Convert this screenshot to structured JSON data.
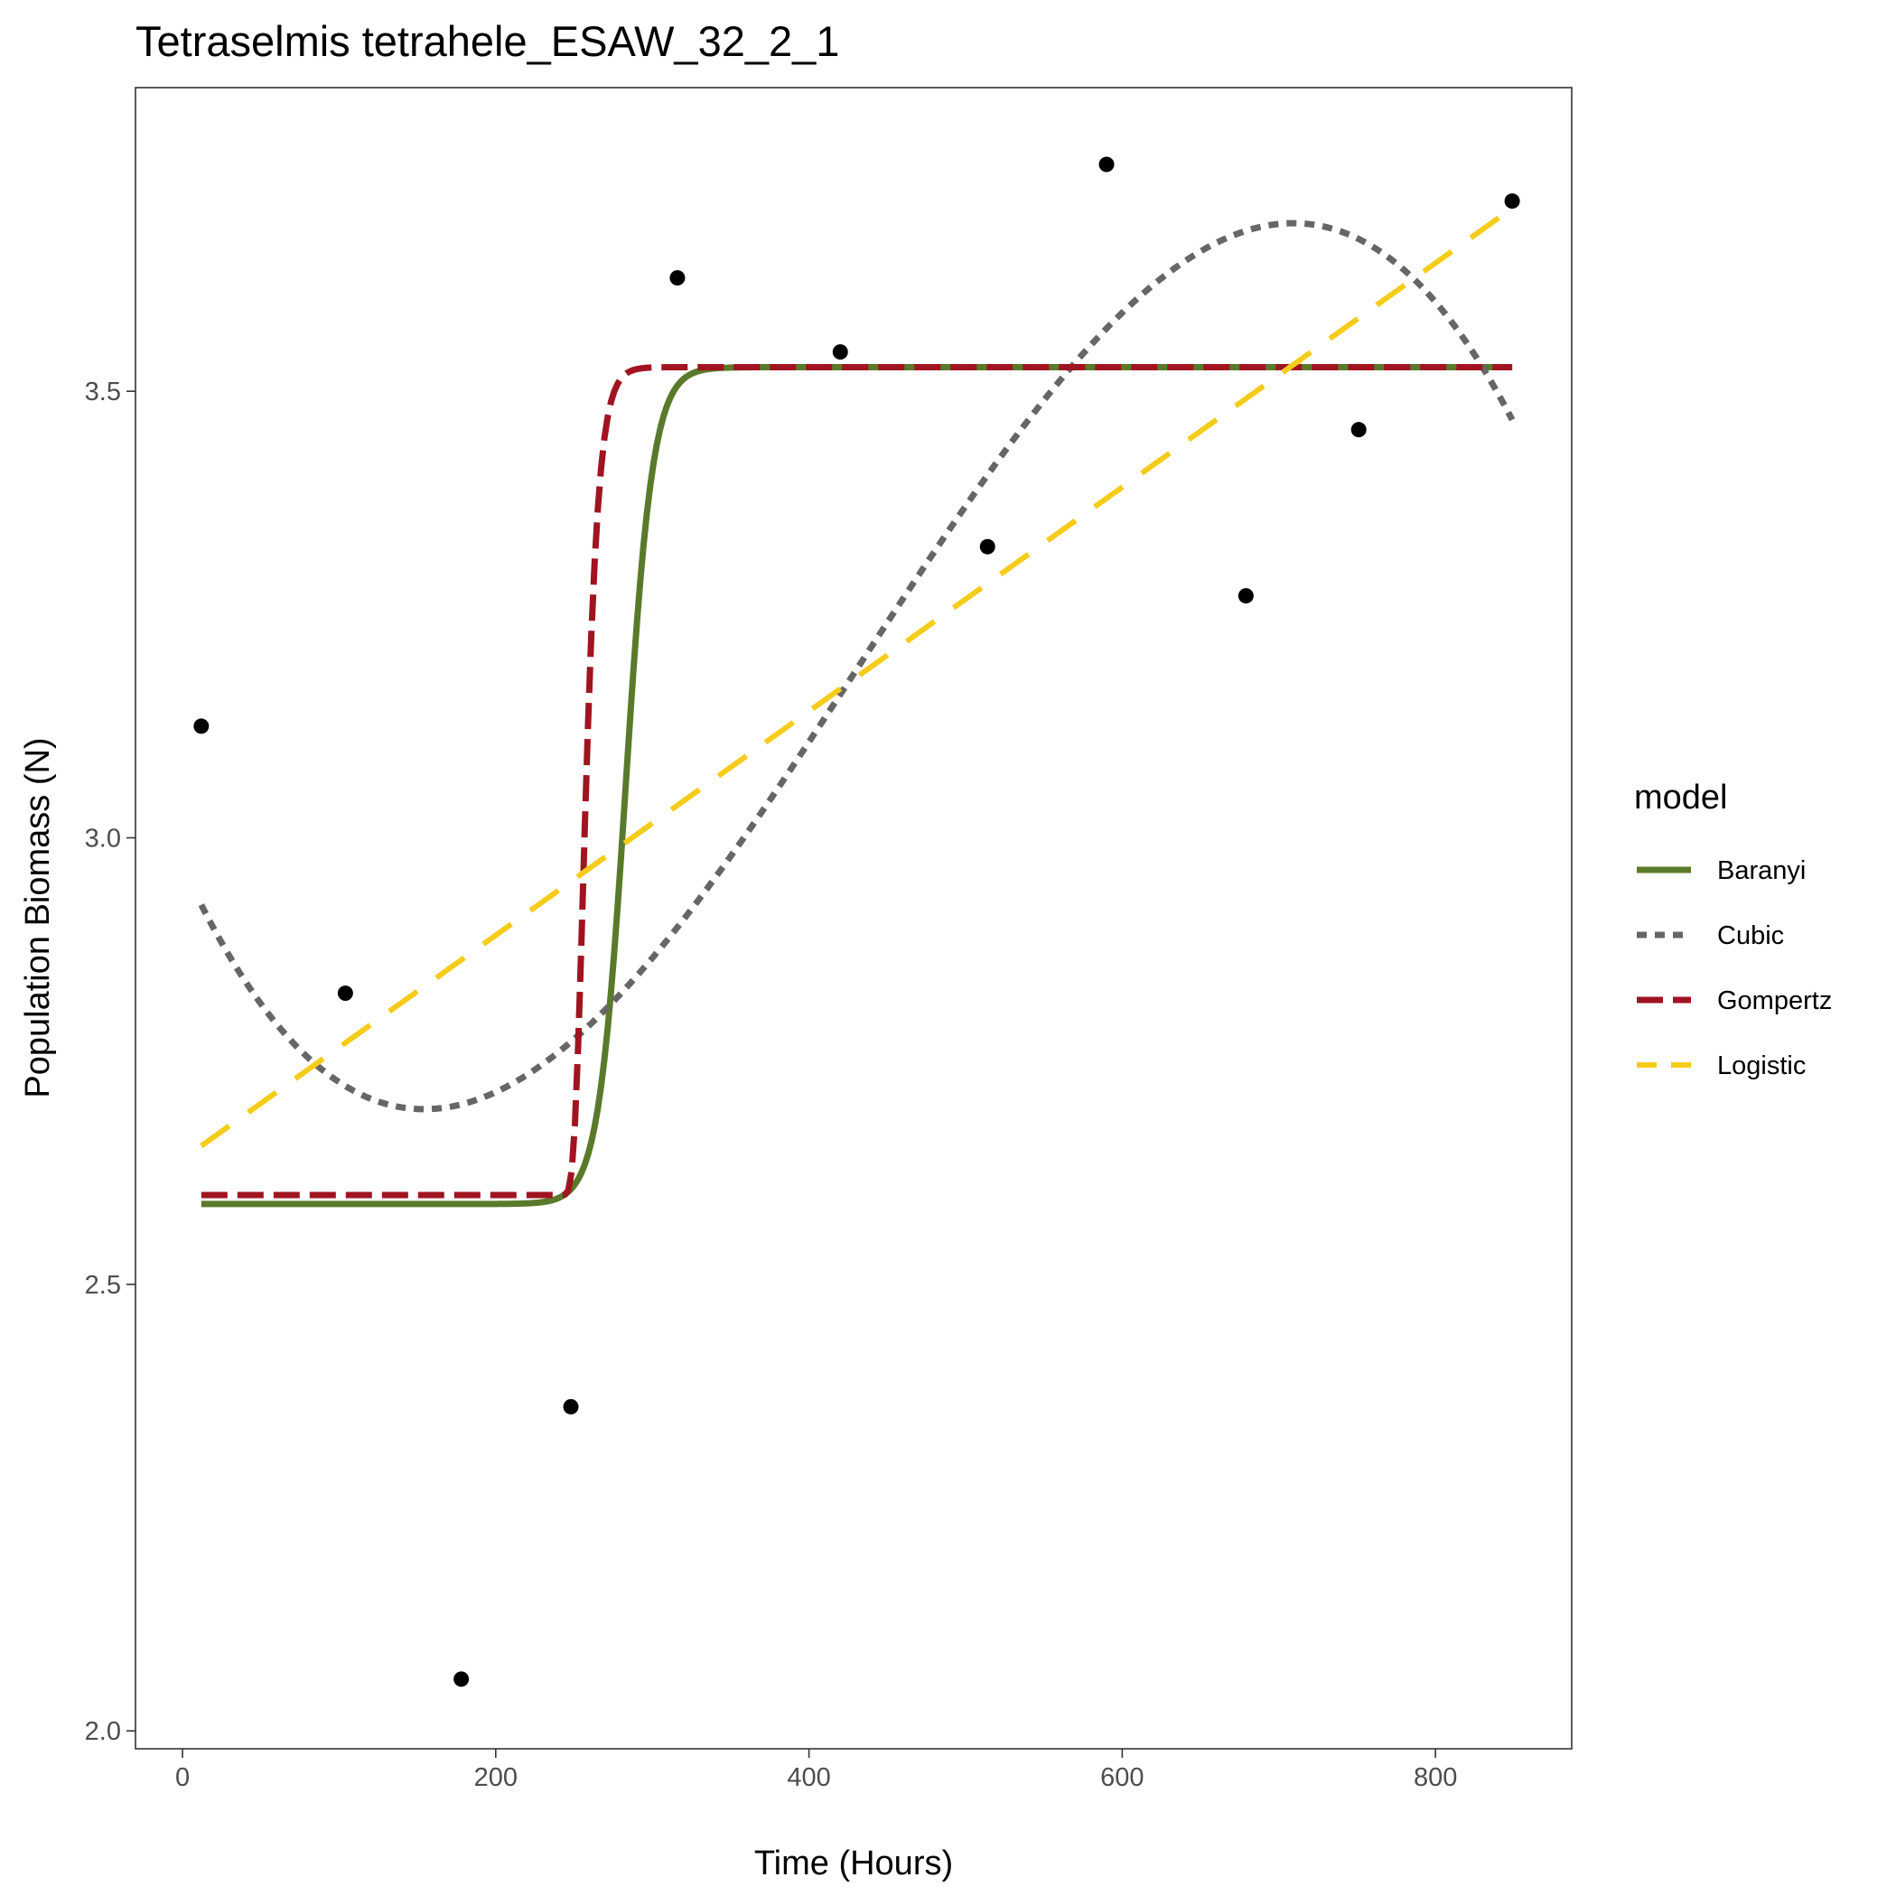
{
  "chart_data": {
    "type": "line",
    "title": "Tetraselmis tetrahele_ESAW_32_2_1",
    "xlabel": "Time (Hours)",
    "ylabel": "Population Biomass (N)",
    "xlim": [
      -30,
      887
    ],
    "ylim": [
      1.98,
      3.84
    ],
    "xticks": [
      0,
      200,
      400,
      600,
      800
    ],
    "xtick_labels": [
      "0",
      "200",
      "400",
      "600",
      "800"
    ],
    "yticks": [
      2.0,
      2.5,
      3.0,
      3.5
    ],
    "ytick_labels": [
      "2.0",
      "2.5",
      "3.0",
      "3.5"
    ],
    "grid": false,
    "legend": {
      "title": "model",
      "placement": "right",
      "entries": [
        "Baranyi",
        "Cubic",
        "Gompertz",
        "Logistic"
      ]
    },
    "points": [
      {
        "x": 12,
        "y": 3.125
      },
      {
        "x": 104,
        "y": 2.826
      },
      {
        "x": 178,
        "y": 2.058
      },
      {
        "x": 248,
        "y": 2.363
      },
      {
        "x": 316,
        "y": 3.627
      },
      {
        "x": 420,
        "y": 3.544
      },
      {
        "x": 514,
        "y": 3.326
      },
      {
        "x": 590,
        "y": 3.754
      },
      {
        "x": 679,
        "y": 3.271
      },
      {
        "x": 751,
        "y": 3.457
      },
      {
        "x": 849,
        "y": 3.713
      }
    ],
    "series": [
      {
        "name": "Baranyi",
        "color": "#5a7a2b",
        "style": "solid",
        "model": "baranyi",
        "params": {
          "y0": 2.59,
          "ymax": 3.527,
          "mid": 283,
          "rate": 0.115,
          "x_start": 12,
          "x_end": 849
        }
      },
      {
        "name": "Cubic",
        "color": "#666666",
        "style": "dotted",
        "model": "cubic",
        "params": {
          "x1": 12,
          "x2": 849,
          "y_start": 2.925,
          "y_min": 2.697,
          "x_min": 145,
          "y_max": 3.688,
          "x_max": 705,
          "y_end": 3.468
        }
      },
      {
        "name": "Gompertz",
        "color": "#a01420",
        "style": "dashed",
        "model": "gompertz",
        "params": {
          "y0": 2.6,
          "ymax": 3.527,
          "lag": 250,
          "rate": 0.06,
          "x_start": 12,
          "x_end": 849
        }
      },
      {
        "name": "Logistic",
        "color": "#f5cc1a",
        "style": "longdash",
        "model": "linear",
        "params": {
          "x_start": 12,
          "y_start": 2.655,
          "x_end": 849,
          "y_end": 3.705
        }
      }
    ]
  }
}
